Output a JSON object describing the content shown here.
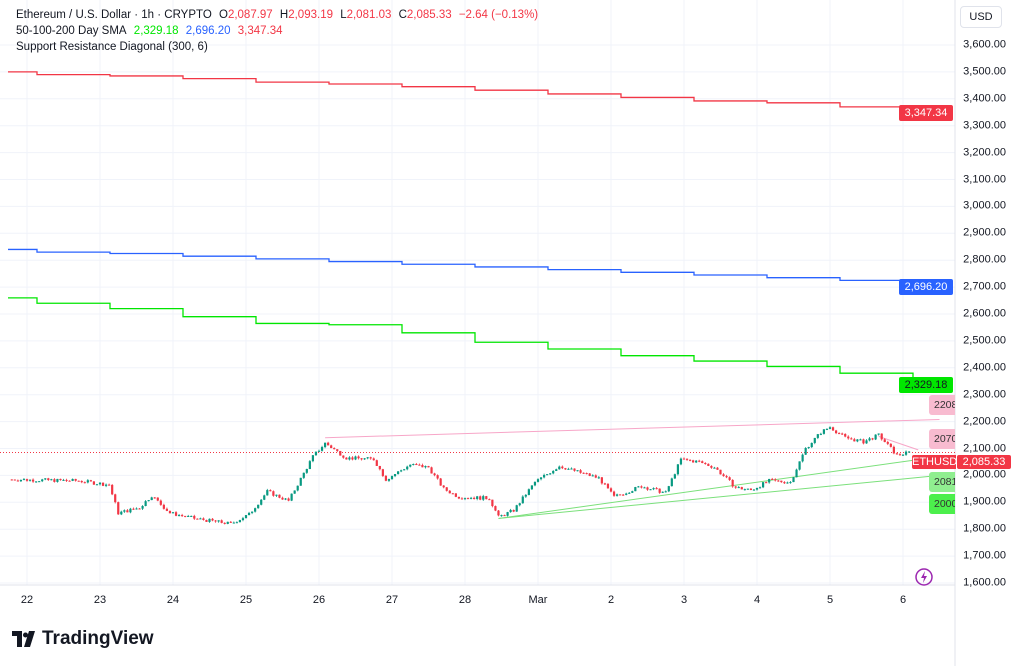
{
  "header": {
    "symbol": "Ethereum / U.S. Dollar · 1h · CRYPTO",
    "o_label": "O",
    "o": "2,087.97",
    "h_label": "H",
    "h": "2,093.19",
    "l_label": "L",
    "l": "2,081.03",
    "c_label": "C",
    "c": "2,085.33",
    "change": "−2.64 (−0.13%)"
  },
  "sma": {
    "label": "50-100-200 Day SMA",
    "v50": "2,329.18",
    "v100": "2,696.20",
    "v200": "3,347.34"
  },
  "indicator": {
    "label": "Support Resistance Diagonal (300, 6)"
  },
  "currency": "USD",
  "colors": {
    "up": "#089981",
    "down": "#f23645",
    "sma50": "#00e600",
    "sma100": "#2962ff",
    "sma200": "#f23645",
    "resistance": "#f7a6c8",
    "support": "#7be07b"
  },
  "y_axis": {
    "ticks": [
      1600,
      1700,
      1800,
      1900,
      2000,
      2100,
      2200,
      2300,
      2400,
      2500,
      2600,
      2700,
      2800,
      2900,
      3000,
      3100,
      3200,
      3300,
      3400,
      3500,
      3600
    ],
    "labels": [
      "1,600.00",
      "1,700.00",
      "1,800.00",
      "1,900.00",
      "2,000.00",
      "2,100.00",
      "2,200.00",
      "2,300.00",
      "2,400.00",
      "2,500.00",
      "2,600.00",
      "2,700.00",
      "2,800.00",
      "2,900.00",
      "3,000.00",
      "3,100.00",
      "3,200.00",
      "3,300.00",
      "3,400.00",
      "3,500.00",
      "3,600.00"
    ]
  },
  "x_axis": {
    "labels": [
      "22",
      "23",
      "24",
      "25",
      "26",
      "27",
      "28",
      "Mar",
      "2",
      "3",
      "4",
      "5",
      "6"
    ]
  },
  "price_labels": {
    "sma200": "3,347.34",
    "sma100": "2,696.20",
    "sma50": "2,329.18",
    "ticker": "ETHUSD",
    "last": "2,085.33"
  },
  "sr_tags": [
    "2208",
    "2070",
    "2081",
    "2000"
  ],
  "chart_data": {
    "type": "candlestick",
    "price_path": [
      [
        "Feb 21 18:00",
        1985
      ],
      [
        "Feb 22 17:00",
        1980
      ],
      [
        "Feb 23 03:00",
        1965
      ],
      [
        "Feb 23 06:00",
        1860
      ],
      [
        "Feb 23 13:00",
        1880
      ],
      [
        "Feb 23 17:00",
        1925
      ],
      [
        "Feb 23 23:00",
        1860
      ],
      [
        "Feb 24 07:00",
        1840
      ],
      [
        "Feb 24 19:00",
        1820
      ],
      [
        "Feb 25 01:00",
        1855
      ],
      [
        "Feb 25 07:00",
        1940
      ],
      [
        "Feb 25 14:00",
        1905
      ],
      [
        "Feb 25 22:00",
        2070
      ],
      [
        "Feb 26 02:00",
        2120
      ],
      [
        "Feb 26 09:00",
        2065
      ],
      [
        "Feb 26 18:00",
        2060
      ],
      [
        "Feb 26 22:00",
        1985
      ],
      [
        "Feb 27 06:00",
        2040
      ],
      [
        "Feb 27 12:00",
        2030
      ],
      [
        "Feb 27 17:00",
        1950
      ],
      [
        "Feb 27 22:00",
        1920
      ],
      [
        "Feb 28 08:00",
        1915
      ],
      [
        "Feb 28 11:00",
        1845
      ],
      [
        "Feb 28 16:00",
        1870
      ],
      [
        "Feb 28 23:00",
        1975
      ],
      [
        "Mar 1 07:00",
        2035
      ],
      [
        "Mar 1 14:00",
        2010
      ],
      [
        "Mar 1 20:00",
        1990
      ],
      [
        "Mar 2 01:00",
        1920
      ],
      [
        "Mar 2 10:00",
        1960
      ],
      [
        "Mar 2 18:00",
        1935
      ],
      [
        "Mar 2 23:00",
        2060
      ],
      [
        "Mar 3 05:00",
        2050
      ],
      [
        "Mar 3 10:00",
        2030
      ],
      [
        "Mar 3 17:00",
        1955
      ],
      [
        "Mar 3 22:00",
        1945
      ],
      [
        "Mar 4 04:00",
        1980
      ],
      [
        "Mar 4 11:00",
        1975
      ],
      [
        "Mar 4 16:00",
        2100
      ],
      [
        "Mar 4 21:00",
        2160
      ],
      [
        "Mar 5 00:00",
        2180
      ],
      [
        "Mar 5 05:00",
        2140
      ],
      [
        "Mar 5 11:00",
        2125
      ],
      [
        "Mar 5 16:00",
        2150
      ],
      [
        "Mar 5 22:00",
        2075
      ],
      [
        "Mar 6 02:00",
        2085
      ]
    ],
    "sma200": [
      3500,
      3490,
      3485,
      3475,
      3462,
      3455,
      3445,
      3432,
      3418,
      3405,
      3392,
      3385,
      3370,
      3360,
      3347
    ],
    "sma100": [
      2840,
      2830,
      2825,
      2815,
      2805,
      2795,
      2785,
      2775,
      2765,
      2755,
      2745,
      2735,
      2725,
      2715,
      2696
    ],
    "sma50": [
      2660,
      2640,
      2620,
      2590,
      2565,
      2560,
      2530,
      2495,
      2470,
      2445,
      2425,
      2405,
      2380,
      2360,
      2329
    ],
    "resistance": [
      [
        "Feb 26 02:00",
        2140
      ],
      [
        "Mar 6 12:00",
        2208
      ]
    ],
    "support": [
      [
        [
          "Feb 28 11:00",
          1840
        ],
        [
          "Mar 6 12:00",
          2070
        ]
      ],
      [
        [
          "Feb 28 11:00",
          1840
        ],
        [
          "Mar 6 12:00",
          2000
        ]
      ]
    ],
    "last_price": 2085.33,
    "ylim": [
      1600,
      3600
    ]
  }
}
